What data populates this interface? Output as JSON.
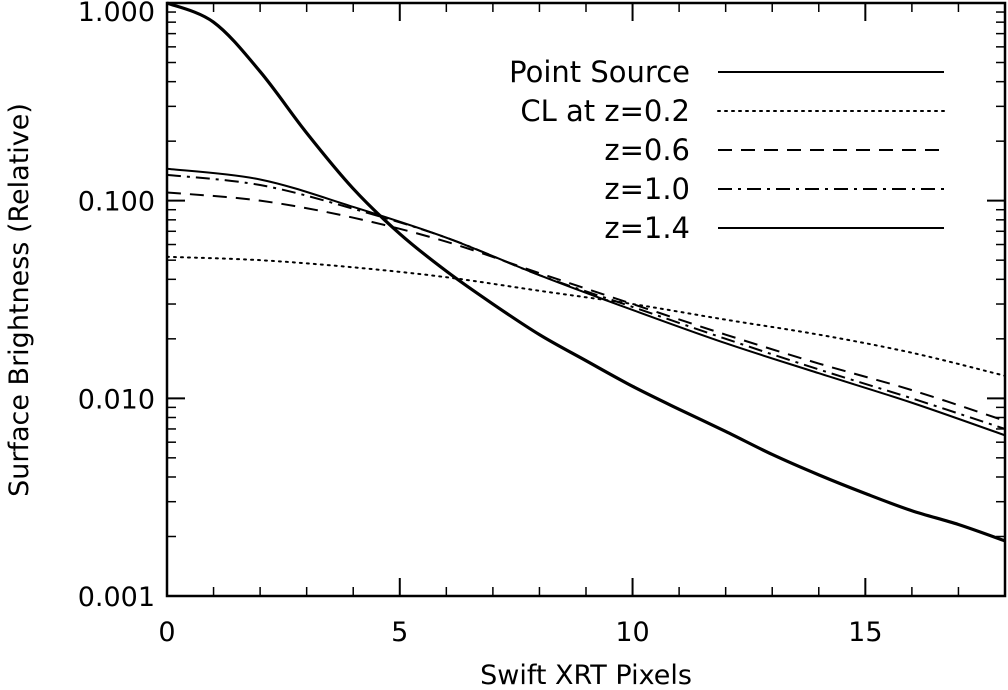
{
  "chart_data": {
    "type": "line",
    "title": "",
    "xlabel": "Swift XRT Pixels",
    "ylabel": "Surface Brightness (Relative)",
    "xscale": "linear",
    "yscale": "log",
    "xlim": [
      0,
      18
    ],
    "ylim": [
      0.001,
      1.0
    ],
    "xticks": [
      0,
      5,
      10,
      15
    ],
    "xtick_labels": [
      "0",
      "5",
      "10",
      "15"
    ],
    "yticks": [
      0.001,
      0.01,
      0.1,
      1.0
    ],
    "ytick_labels": [
      "0.001",
      "0.010",
      "0.100",
      "1.000"
    ],
    "legend_position": "top-right",
    "series": [
      {
        "name": "Point Source",
        "style": "solid",
        "weight": "bold",
        "x": [
          0,
          1,
          2,
          3,
          4,
          5,
          6,
          7,
          8,
          9,
          10,
          11,
          12,
          13,
          14,
          15,
          16,
          17,
          18
        ],
        "y": [
          1.0,
          0.8,
          0.45,
          0.22,
          0.115,
          0.068,
          0.044,
          0.03,
          0.021,
          0.0155,
          0.0115,
          0.0088,
          0.0068,
          0.0052,
          0.0041,
          0.0033,
          0.0027,
          0.0023,
          0.0019
        ]
      },
      {
        "name": "CL at z=0.2",
        "style": "dotted",
        "weight": "normal",
        "x": [
          0,
          2,
          4,
          6,
          8,
          10,
          12,
          14,
          16,
          18
        ],
        "y": [
          0.052,
          0.05,
          0.046,
          0.041,
          0.035,
          0.03,
          0.025,
          0.021,
          0.017,
          0.013
        ]
      },
      {
        "name": "z=0.6",
        "style": "dashed",
        "weight": "normal",
        "x": [
          0,
          2,
          4,
          6,
          8,
          10,
          12,
          14,
          16,
          18
        ],
        "y": [
          0.11,
          0.1,
          0.082,
          0.062,
          0.043,
          0.03,
          0.021,
          0.015,
          0.011,
          0.0077
        ]
      },
      {
        "name": "z=1.0",
        "style": "dashdot",
        "weight": "normal",
        "x": [
          0,
          2,
          4,
          6,
          8,
          10,
          12,
          14,
          16,
          18
        ],
        "y": [
          0.135,
          0.12,
          0.091,
          0.065,
          0.042,
          0.029,
          0.02,
          0.014,
          0.01,
          0.007
        ]
      },
      {
        "name": "z=1.4",
        "style": "solid",
        "weight": "normal",
        "x": [
          0,
          2,
          4,
          6,
          8,
          10,
          12,
          14,
          16,
          18
        ],
        "y": [
          0.145,
          0.128,
          0.093,
          0.065,
          0.042,
          0.028,
          0.019,
          0.0134,
          0.0095,
          0.0065
        ]
      }
    ]
  }
}
